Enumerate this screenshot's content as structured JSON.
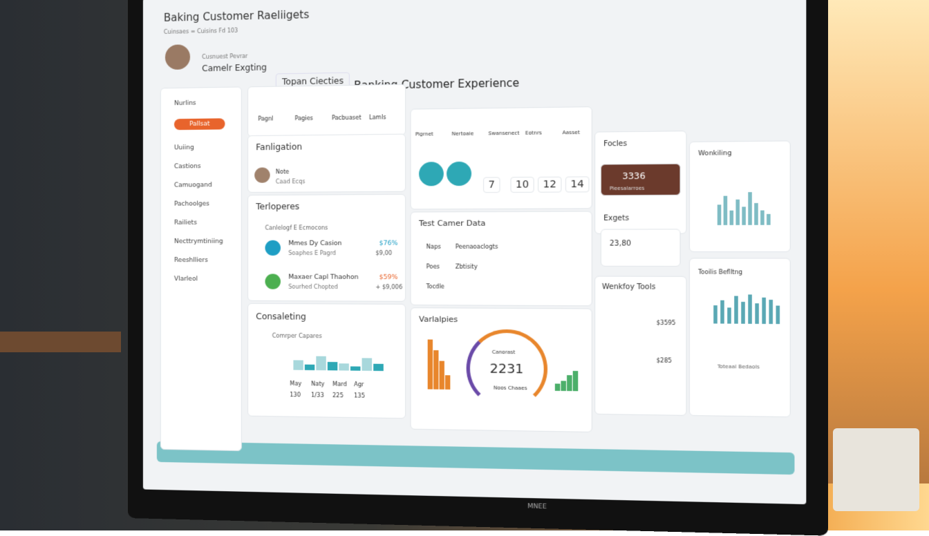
{
  "header": {
    "title": "Baking Customer Raeliigets",
    "subtitle": "Cuinsaes ≡ Cuisins Fd 103",
    "user_role": "Cusnuest Pevrar",
    "user_name": "Camelr Exgting",
    "tab": "Topan Ciecties",
    "page_title": "Banking Customer Experience"
  },
  "sidebar": {
    "items": [
      "Nurlins",
      "Pallsat",
      "Uuiing",
      "Castions",
      "Camuogand",
      "Pachoolges",
      "Railiets",
      "Necttrymtiniing",
      "Reeshlliers",
      "Vlarleol"
    ]
  },
  "nav_tabs": [
    "Pagnl",
    "Pagies",
    "Pacbuaset",
    "Lamls"
  ],
  "navigation": {
    "title": "Fanligation",
    "note": "Note",
    "note_sub": "Caad Ecqs"
  },
  "terloperes": {
    "title": "Terloperes",
    "subtitle": "Canlelogf E Ecmocons",
    "rows": [
      {
        "name": "Mmes Dy Casion",
        "sub": "Soaphes E Pagrd",
        "pct": "$76%",
        "amount": "$9,00"
      },
      {
        "name": "Maxaer Capl Thaohon",
        "sub": "Sourhed Chopted",
        "pct": "$59%",
        "amount": "+ $9,006"
      }
    ]
  },
  "consulting": {
    "title": "Consaleting",
    "subtitle": "Comrper Capares",
    "months": [
      "May",
      "Naty",
      "Mard",
      "Agr"
    ],
    "totals": [
      "130",
      "1/33",
      "225",
      "135"
    ],
    "bars": [
      14,
      8,
      20,
      12,
      10,
      6,
      18,
      10
    ]
  },
  "people": {
    "icons": [
      "Pigrnet",
      "Nertoaie",
      "Swansenect",
      "Eotnrs",
      "Aasset"
    ],
    "stats": [
      7,
      10,
      12,
      14
    ]
  },
  "test_data": {
    "title": "Test Camer Data",
    "rows": [
      [
        "Naps",
        "Peenaoaclogts"
      ],
      [
        "Poes",
        "Zbtisity"
      ],
      [
        "Tocdle",
        ""
      ]
    ]
  },
  "variables": {
    "title": "Varlalpies",
    "gauge_label": "Canorast",
    "gauge_value": "2231",
    "gauge_sub": "Noos Chaaes",
    "left_bars": [
      70,
      55,
      40,
      20
    ],
    "right_bars": [
      10,
      14,
      22,
      28
    ]
  },
  "focles": {
    "title": "Focles",
    "value": "3336",
    "sub": "Pieesalarroes"
  },
  "exgets": {
    "title": "Exgets",
    "value": "23,80"
  },
  "workflow_tools": {
    "title": "Wenkfoy Tools",
    "rows": [
      "$3595",
      "$285"
    ]
  },
  "wonkiling": {
    "title": "Wonkiling",
    "bars": [
      28,
      40,
      20,
      35,
      25,
      45,
      30,
      20,
      15
    ]
  },
  "tools": {
    "title": "Tooilis Beflltng",
    "bars": [
      25,
      32,
      22,
      38,
      30,
      40,
      28,
      36,
      33,
      25
    ],
    "footer": "Toteaal Bedaols"
  },
  "monitor": {
    "brand": "MNEE"
  }
}
